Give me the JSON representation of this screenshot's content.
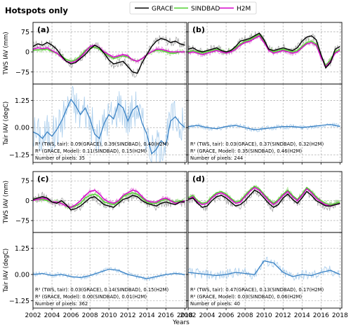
{
  "figure_title": "Hotspots only",
  "xlabel": "Years",
  "colors": {
    "grace": "#000000",
    "sindbad": "#4fcf2f",
    "h2m": "#d400c8",
    "grace_monthly": "#a8a8a8",
    "sindbad_monthly": "#a5e88e",
    "h2m_monthly": "#e58fe0",
    "tair": "#3a82c4",
    "tair_monthly": "#a9cdec",
    "grid": "#9a9a9a"
  },
  "legend": {
    "position": "top-center",
    "entries": [
      {
        "label": "GRACE",
        "color_key": "grace"
      },
      {
        "label": "SINDBAD",
        "color_key": "sindbad"
      },
      {
        "label": "H2M",
        "color_key": "h2m"
      }
    ]
  },
  "chart_data": {
    "type": "line",
    "x_ticks": [
      2002,
      2004,
      2006,
      2008,
      2010,
      2012,
      2014,
      2016,
      2018
    ],
    "x_tick_labels": [
      "2002",
      "2004",
      "2006",
      "2008",
      "2010",
      "2012",
      "2014",
      "2016",
      "2018"
    ],
    "xlim": [
      2002,
      2018.2
    ],
    "tws": {
      "ylabel": "TWS IAV (mm)",
      "ylim": [
        -120,
        110
      ],
      "y_ticks": [
        75,
        0,
        -75
      ],
      "y_tick_labels": [
        "75",
        "0",
        "−75"
      ]
    },
    "tair": {
      "ylabel": "Tair IAV (degC)",
      "ylim": [
        -1.6,
        2.0
      ],
      "y_ticks": [
        1.25,
        0.0,
        -1.25
      ],
      "y_tick_labels": [
        "1.25",
        "0.00",
        "−1.25"
      ]
    },
    "panels": [
      {
        "label": "(a)",
        "tws": {
          "grace_x": [
            2002,
            2002.5,
            2003,
            2003.5,
            2004,
            2004.5,
            2005,
            2005.5,
            2006,
            2006.5,
            2007,
            2007.5,
            2008,
            2008.5,
            2009,
            2009.5,
            2010,
            2010.5,
            2011,
            2011.5,
            2012,
            2012.5,
            2013,
            2013.5,
            2014,
            2014.5,
            2015,
            2015.5,
            2016,
            2016.5,
            2017,
            2017.5,
            2018
          ],
          "grace": [
            20,
            30,
            25,
            35,
            25,
            10,
            -15,
            -35,
            -45,
            -40,
            -25,
            -10,
            10,
            25,
            15,
            -5,
            -30,
            -45,
            -40,
            -35,
            -55,
            -75,
            -80,
            -40,
            -10,
            20,
            40,
            50,
            45,
            35,
            40,
            30,
            25
          ],
          "sindbad": [
            5,
            8,
            8,
            10,
            2,
            -5,
            -15,
            -28,
            -35,
            -30,
            -15,
            5,
            15,
            18,
            10,
            -5,
            -15,
            -25,
            -20,
            -15,
            -20,
            -30,
            -35,
            -25,
            -10,
            0,
            5,
            5,
            0,
            -5,
            -5,
            0,
            0
          ],
          "h2m": [
            10,
            15,
            12,
            15,
            5,
            -5,
            -20,
            -35,
            -40,
            -35,
            -20,
            0,
            20,
            25,
            15,
            0,
            -10,
            -20,
            -15,
            -10,
            -15,
            -30,
            -35,
            -25,
            -10,
            0,
            10,
            10,
            5,
            0,
            0,
            0,
            0
          ]
        },
        "tair": {
          "x": [
            2002,
            2002.5,
            2003,
            2003.5,
            2004,
            2004.5,
            2005,
            2005.5,
            2006,
            2006.5,
            2007,
            2007.5,
            2008,
            2008.5,
            2009,
            2009.5,
            2010,
            2010.5,
            2011,
            2011.5,
            2012,
            2012.5,
            2013,
            2013.5,
            2014,
            2014.5,
            2015,
            2015.5,
            2016,
            2016.5,
            2017,
            2017.5,
            2018
          ],
          "values": [
            -0.2,
            -0.3,
            -0.5,
            -0.2,
            -0.4,
            -0.1,
            0.3,
            0.8,
            1.3,
            1.0,
            0.6,
            0.9,
            0.4,
            -0.3,
            -0.5,
            0.2,
            0.6,
            0.4,
            1.1,
            0.9,
            0.3,
            0.8,
            1.0,
            0.2,
            -0.3,
            -1.2,
            -1.0,
            -0.6,
            -0.8,
            0.3,
            0.5,
            0.2,
            0.0
          ]
        },
        "stats": [
          "R² (TWS, tair): 0.09(GRACE), 0.39(SINDBAD), 0.40(H2M)",
          "R² (GRACE, Model): 0.11(SINDBAD), 0.15(H2M)",
          "Number of pixels: 35"
        ]
      },
      {
        "label": "(b)",
        "tws": {
          "grace_x": [
            2002,
            2002.5,
            2003,
            2003.5,
            2004,
            2004.5,
            2005,
            2005.5,
            2006,
            2006.5,
            2007,
            2007.5,
            2008,
            2008.5,
            2009,
            2009.5,
            2010,
            2010.5,
            2011,
            2011.5,
            2012,
            2012.5,
            2013,
            2013.5,
            2014,
            2014.5,
            2015,
            2015.5,
            2016,
            2016.5,
            2017,
            2017.5,
            2018
          ],
          "grace": [
            10,
            15,
            5,
            0,
            5,
            10,
            15,
            5,
            0,
            5,
            20,
            40,
            45,
            50,
            60,
            70,
            45,
            10,
            5,
            10,
            15,
            10,
            5,
            15,
            40,
            55,
            60,
            45,
            -10,
            -60,
            -40,
            10,
            20
          ],
          "sindbad": [
            0,
            5,
            0,
            -5,
            0,
            5,
            10,
            5,
            0,
            5,
            15,
            30,
            40,
            45,
            55,
            65,
            40,
            10,
            0,
            5,
            10,
            5,
            0,
            5,
            20,
            35,
            40,
            30,
            -15,
            -50,
            -30,
            0,
            10
          ],
          "h2m": [
            -5,
            0,
            -5,
            -10,
            -5,
            0,
            5,
            0,
            -5,
            0,
            10,
            25,
            35,
            40,
            50,
            60,
            35,
            5,
            -5,
            0,
            5,
            0,
            -5,
            0,
            15,
            30,
            35,
            25,
            -20,
            -55,
            -35,
            -5,
            5
          ]
        },
        "tair": {
          "x": [
            2002,
            2003,
            2004,
            2005,
            2006,
            2007,
            2008,
            2009,
            2010,
            2011,
            2012,
            2013,
            2014,
            2015,
            2016,
            2017,
            2018
          ],
          "values": [
            0.05,
            0.1,
            0.0,
            -0.05,
            0.05,
            0.1,
            0.0,
            -0.1,
            -0.05,
            0.0,
            0.05,
            0.05,
            0.0,
            0.05,
            0.1,
            0.15,
            0.05
          ]
        },
        "stats": [
          "R² (TWS, tair): 0.03(GRACE), 0.37(SINDBAD), 0.32(H2M)",
          "R² (GRACE, Model): 0.35(SINDBAD), 0.46(H2M)",
          "Number of pixels: 244"
        ]
      },
      {
        "label": "(c)",
        "tws": {
          "grace_x": [
            2002,
            2002.5,
            2003,
            2003.5,
            2004,
            2004.5,
            2005,
            2005.5,
            2006,
            2006.5,
            2007,
            2007.5,
            2008,
            2008.5,
            2009,
            2009.5,
            2010,
            2010.5,
            2011,
            2011.5,
            2012,
            2012.5,
            2013,
            2013.5,
            2014,
            2014.5,
            2015,
            2015.5,
            2016,
            2016.5,
            2017,
            2017.5,
            2018
          ],
          "grace": [
            5,
            10,
            15,
            10,
            -5,
            -10,
            0,
            -15,
            -35,
            -30,
            -20,
            -5,
            10,
            15,
            0,
            -15,
            -20,
            -25,
            -10,
            5,
            10,
            20,
            15,
            0,
            -10,
            -15,
            -20,
            -10,
            -5,
            -10,
            -15,
            -5,
            -5
          ],
          "sindbad": [
            0,
            5,
            5,
            0,
            -5,
            -5,
            -10,
            -20,
            -25,
            -20,
            -10,
            10,
            20,
            25,
            15,
            -5,
            -10,
            -15,
            -5,
            15,
            25,
            30,
            25,
            10,
            -5,
            -10,
            -10,
            0,
            5,
            0,
            -5,
            0,
            0
          ],
          "h2m": [
            0,
            5,
            10,
            5,
            -5,
            -5,
            -10,
            -20,
            -25,
            -15,
            0,
            20,
            35,
            40,
            25,
            5,
            -5,
            -10,
            0,
            20,
            30,
            40,
            35,
            15,
            0,
            -5,
            -5,
            5,
            10,
            0,
            -10,
            -5,
            0
          ]
        },
        "tair": {
          "x": [
            2002,
            2003,
            2004,
            2005,
            2006,
            2007,
            2008,
            2009,
            2010,
            2011,
            2012,
            2013,
            2014,
            2015,
            2016,
            2017,
            2018
          ],
          "values": [
            0.0,
            0.05,
            -0.05,
            0.0,
            -0.1,
            -0.15,
            -0.05,
            0.1,
            0.25,
            0.2,
            0.0,
            -0.1,
            -0.2,
            -0.1,
            0.0,
            0.05,
            0.0
          ]
        },
        "stats": [
          "R² (TWS, tair): 0.03(GRACE), 0.14(SINDBAD), 0.15(H2M)",
          "R² (GRACE, Model): 0.00(SINDBAD), 0.01(H2M)",
          "Number of pixels: 362"
        ]
      },
      {
        "label": "(d)",
        "tws": {
          "grace_x": [
            2002,
            2002.5,
            2003,
            2003.5,
            2004,
            2004.5,
            2005,
            2005.5,
            2006,
            2006.5,
            2007,
            2007.5,
            2008,
            2008.5,
            2009,
            2009.5,
            2010,
            2010.5,
            2011,
            2011.5,
            2012,
            2012.5,
            2013,
            2013.5,
            2014,
            2014.5,
            2015,
            2015.5,
            2016,
            2016.5,
            2017,
            2017.5,
            2018
          ],
          "grace": [
            5,
            10,
            -10,
            -25,
            -20,
            0,
            15,
            20,
            10,
            -5,
            -20,
            -15,
            0,
            20,
            40,
            30,
            10,
            -10,
            -25,
            -15,
            10,
            25,
            5,
            -10,
            10,
            35,
            20,
            0,
            -10,
            -20,
            -20,
            -15,
            -10
          ],
          "sindbad": [
            10,
            20,
            0,
            -10,
            -5,
            15,
            30,
            35,
            25,
            10,
            -5,
            0,
            20,
            40,
            55,
            45,
            25,
            5,
            -10,
            5,
            25,
            40,
            20,
            5,
            25,
            50,
            35,
            15,
            0,
            -10,
            -15,
            -10,
            -5
          ],
          "h2m": [
            5,
            15,
            -5,
            -15,
            -10,
            10,
            25,
            30,
            20,
            5,
            -10,
            -5,
            15,
            35,
            50,
            40,
            20,
            0,
            -15,
            0,
            20,
            35,
            15,
            0,
            20,
            45,
            30,
            10,
            -5,
            -15,
            -20,
            -15,
            -10
          ]
        },
        "tair": {
          "x": [
            2002,
            2003,
            2004,
            2005,
            2006,
            2007,
            2008,
            2009,
            2010,
            2011,
            2012,
            2013,
            2014,
            2015,
            2016,
            2017,
            2018
          ],
          "values": [
            0.1,
            0.05,
            0.0,
            -0.05,
            0.0,
            0.1,
            0.05,
            0.0,
            0.65,
            0.55,
            0.1,
            -0.1,
            0.0,
            -0.05,
            0.1,
            0.2,
            0.0
          ]
        },
        "stats": [
          "R² (TWS, tair): 0.47(GRACE), 0.13(SINDBAD), 0.17(H2M)",
          "R² (GRACE, Model): 0.03(SINDBAD), 0.06(H2M)",
          "Number of pixels: 40"
        ]
      }
    ]
  }
}
